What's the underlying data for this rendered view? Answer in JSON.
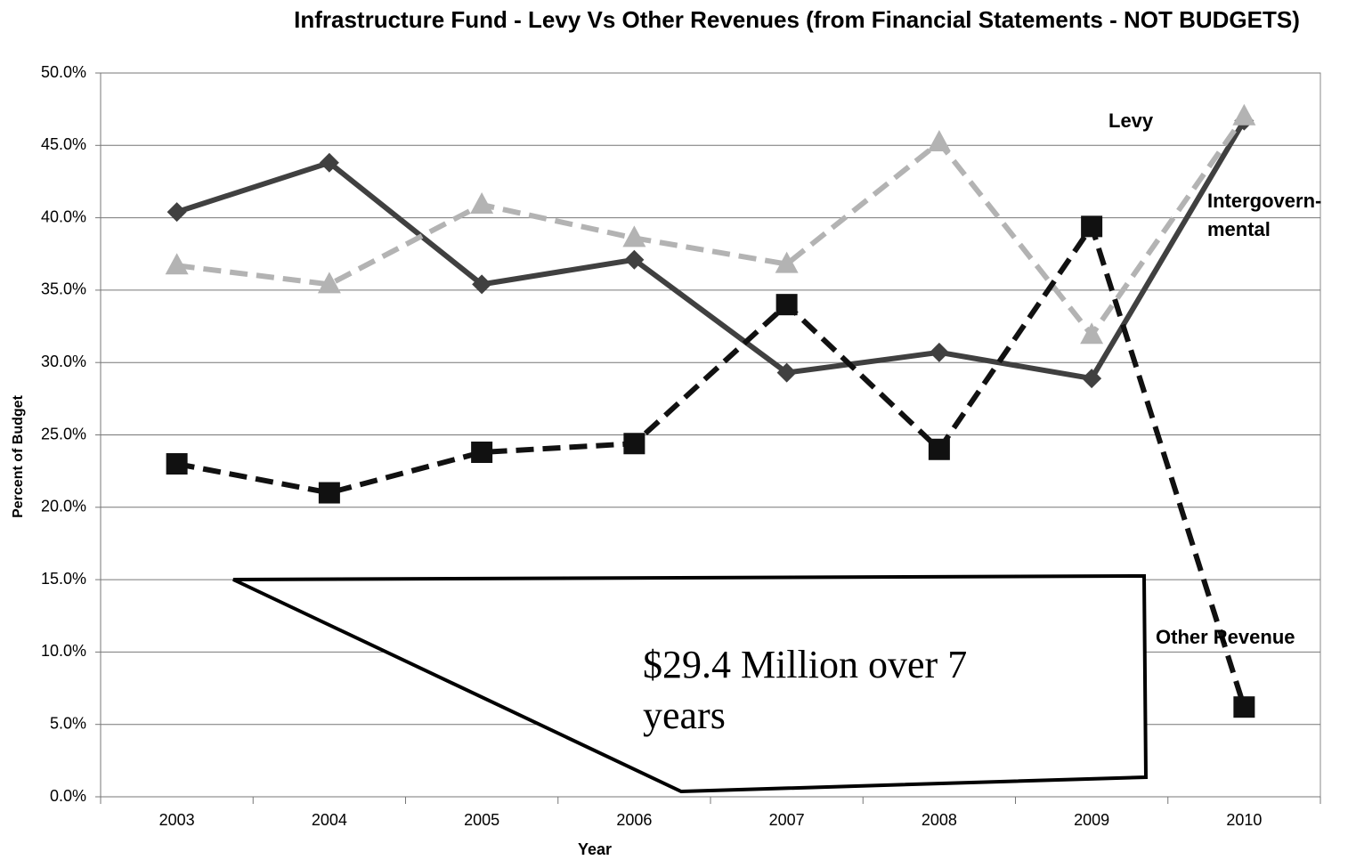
{
  "chart_data": {
    "type": "line",
    "title": "Infrastructure Fund - Levy Vs Other Revenues (from Financial Statements - NOT BUDGETS)",
    "x_label": "Year",
    "y_label": "Percent of Budget",
    "categories": [
      "2003",
      "2004",
      "2005",
      "2006",
      "2007",
      "2008",
      "2009",
      "2010"
    ],
    "series": [
      {
        "color": "#404040",
        "marker": "diamond",
        "dashed": false,
        "values": [
          40.4,
          43.8,
          35.4,
          37.1,
          29.3,
          30.7,
          28.9,
          46.7
        ]
      },
      {
        "color": "#b3b3b3",
        "marker": "triangle",
        "dashed": true,
        "values": [
          36.7,
          35.4,
          40.9,
          38.6,
          36.8,
          45.2,
          31.9,
          47.0
        ]
      },
      {
        "color": "#111111",
        "marker": "square",
        "dashed": true,
        "values": [
          23.0,
          21.0,
          23.8,
          24.4,
          34.0,
          24.0,
          39.4,
          6.2
        ]
      }
    ],
    "ylim": [
      0,
      50
    ],
    "yticks": [
      {
        "value": 0,
        "label": "0.0%"
      },
      {
        "value": 5,
        "label": "5.0%"
      },
      {
        "value": 10,
        "label": "10.0%"
      },
      {
        "value": 15,
        "label": "15.0%"
      },
      {
        "value": 20,
        "label": "20.0%"
      },
      {
        "value": 25,
        "label": "25.0%"
      },
      {
        "value": 30,
        "label": "30.0%"
      },
      {
        "value": 35,
        "label": "35.0%"
      },
      {
        "value": 40,
        "label": "40.0%"
      },
      {
        "value": 45,
        "label": "45.0%"
      },
      {
        "value": 50,
        "label": "50.0%"
      }
    ],
    "grid": true,
    "annotations": [
      {
        "lines": [
          "Levy"
        ]
      },
      {
        "lines": [
          "Intergovern-",
          "mental"
        ]
      },
      {
        "lines": [
          "Other Revenue"
        ]
      }
    ],
    "callout": "$29.4 Million over 7 years"
  }
}
